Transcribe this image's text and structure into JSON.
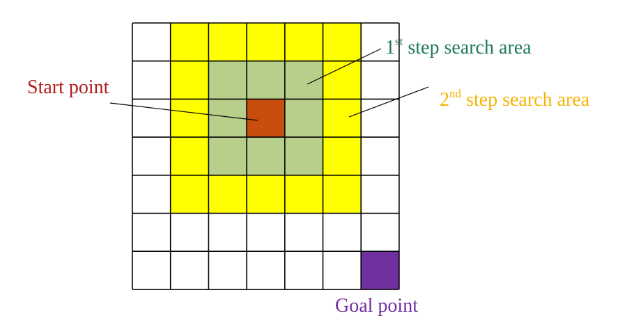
{
  "grid": {
    "rows": 7,
    "cols": 7,
    "cells": [
      [
        "empty",
        "step2",
        "step2",
        "step2",
        "step2",
        "step2",
        "empty"
      ],
      [
        "empty",
        "step2",
        "step1",
        "step1",
        "step1",
        "step2",
        "empty"
      ],
      [
        "empty",
        "step2",
        "step1",
        "start",
        "step1",
        "step2",
        "empty"
      ],
      [
        "empty",
        "step2",
        "step1",
        "step1",
        "step1",
        "step2",
        "empty"
      ],
      [
        "empty",
        "step2",
        "step2",
        "step2",
        "step2",
        "step2",
        "empty"
      ],
      [
        "empty",
        "empty",
        "empty",
        "empty",
        "empty",
        "empty",
        "empty"
      ],
      [
        "empty",
        "empty",
        "empty",
        "empty",
        "empty",
        "empty",
        "goal"
      ]
    ]
  },
  "colors": {
    "empty": "#ffffff",
    "step2": "#ffff00",
    "step1": "#b8cf8b",
    "start": "#c84e0e",
    "goal": "#7030a0",
    "grid_line": "#000000",
    "first_label": "#1e7a55",
    "second_label": "#f4b400",
    "start_label": "#b01c1c",
    "goal_label": "#7030a0"
  },
  "labels": {
    "first_step_num": "1",
    "first_step_sup": "st",
    "first_step_text": " step search area",
    "second_step_num": "2",
    "second_step_sup": "nd",
    "second_step_text": " step search area",
    "start_point": "Start point",
    "goal_point": "Goal point"
  }
}
